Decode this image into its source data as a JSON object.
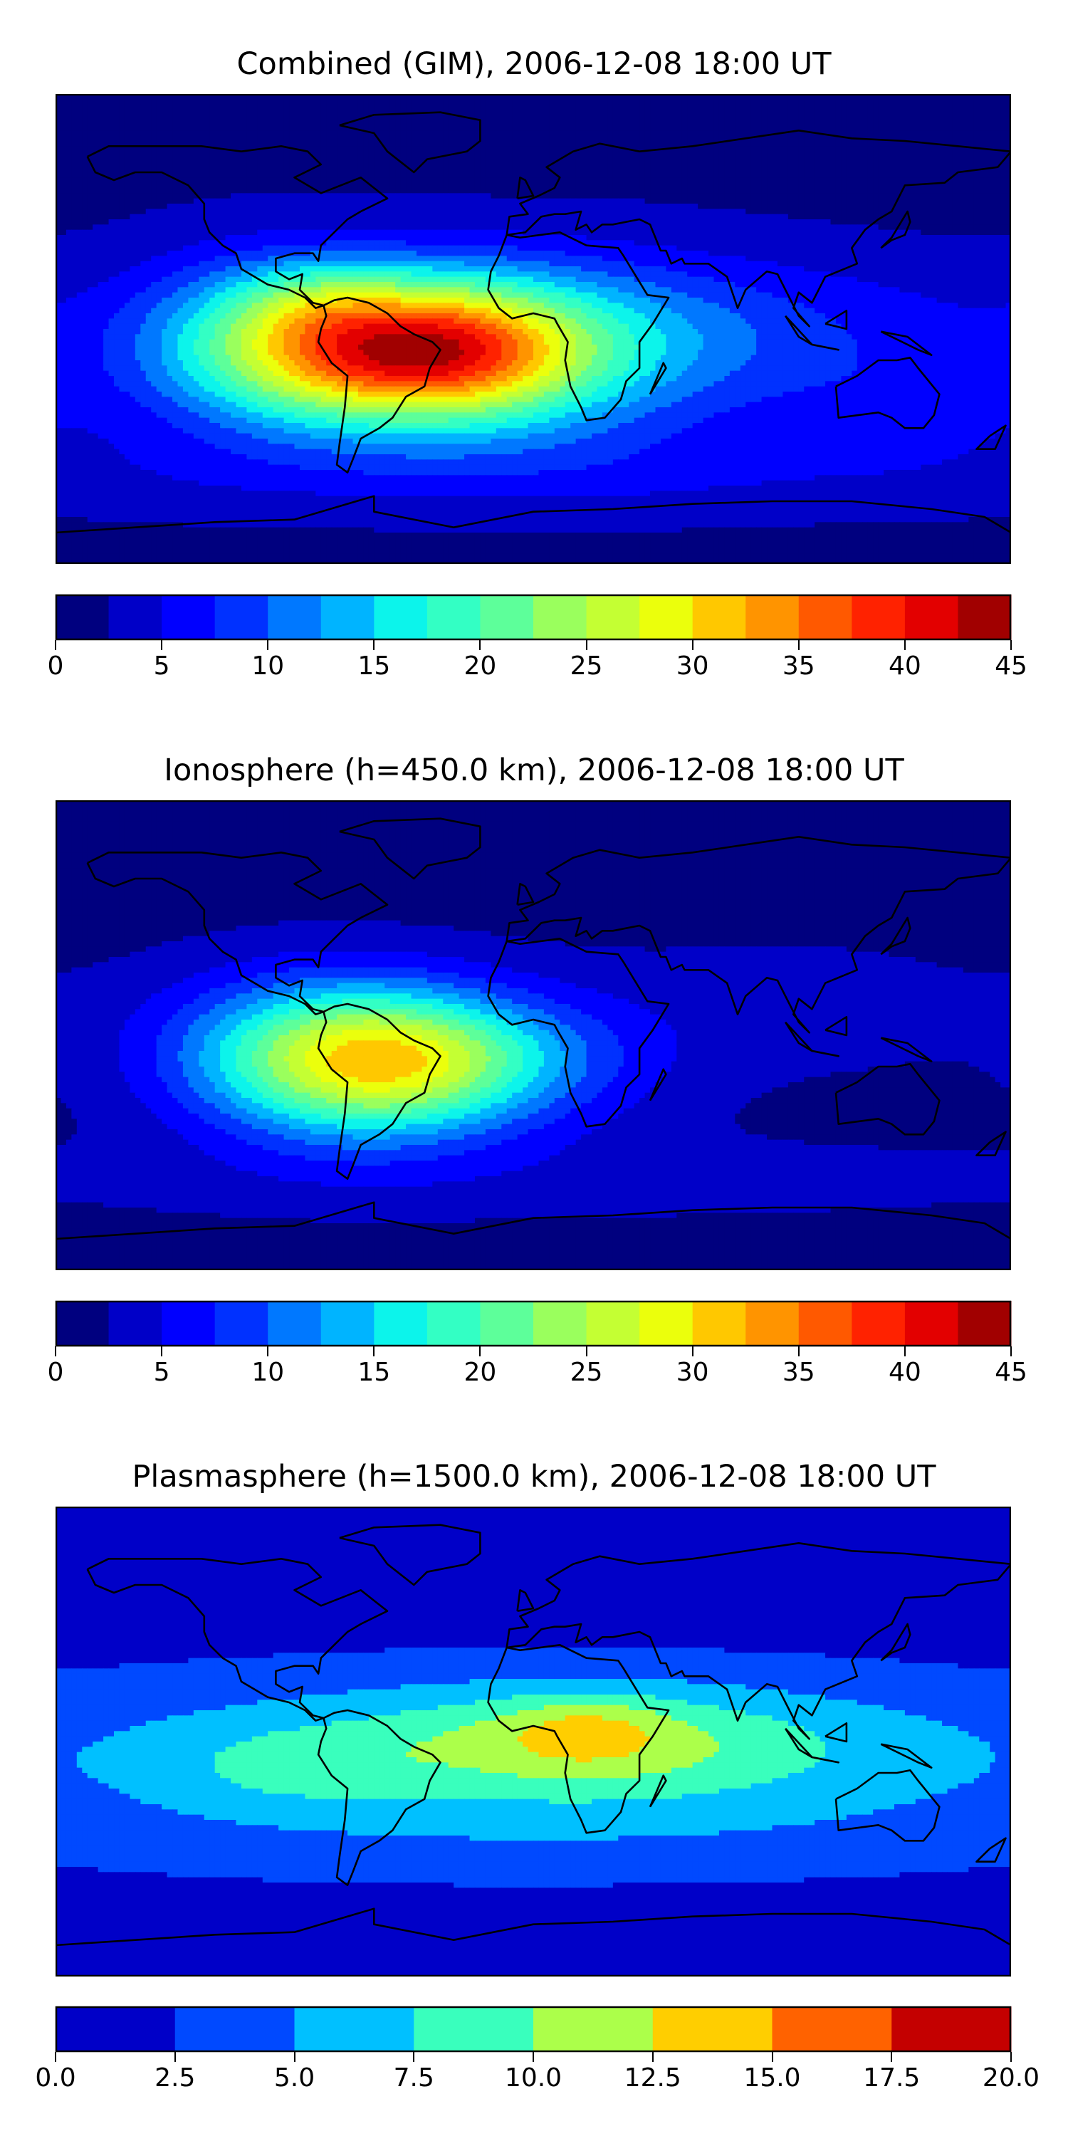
{
  "panels": [
    {
      "title": "Combined (GIM), 2006-12-08 18:00 UT",
      "field": {
        "background": 1.8,
        "blobs": [
          {
            "lon": -55,
            "lat": -8,
            "sx": 45,
            "sy": 20,
            "amp": 35
          },
          {
            "lon": -20,
            "lat": -10,
            "sx": 30,
            "sy": 18,
            "amp": 6
          },
          {
            "lon": -110,
            "lat": -5,
            "sx": 35,
            "sy": 25,
            "amp": 6
          },
          {
            "lon": -85,
            "lat": 12,
            "sx": 20,
            "sy": 10,
            "amp": 4
          },
          {
            "lon": 20,
            "lat": -10,
            "sx": 45,
            "sy": 25,
            "amp": 8
          },
          {
            "lon": 90,
            "lat": 0,
            "sx": 70,
            "sy": 20,
            "amp": 5
          },
          {
            "lon": 140,
            "lat": -30,
            "sx": 40,
            "sy": 15,
            "amp": 3
          },
          {
            "lon": 0,
            "lat": -55,
            "sx": 180,
            "sy": 12,
            "amp": 3
          }
        ]
      },
      "colorbar": {
        "colors": [
          "#00007f",
          "#0000c8",
          "#0000ff",
          "#0031ff",
          "#0078ff",
          "#00b4ff",
          "#0cf4eb",
          "#33ffc4",
          "#5dff9a",
          "#9aff5d",
          "#c4ff33",
          "#ebff0c",
          "#ffc800",
          "#ff9400",
          "#ff5900",
          "#ff2200",
          "#e30000",
          "#a10000"
        ],
        "ticks": [
          "0",
          "5",
          "10",
          "15",
          "20",
          "25",
          "30",
          "35",
          "40",
          "45"
        ],
        "range": [
          0,
          45
        ]
      }
    },
    {
      "title": "Ionosphere  (h=450.0 km), 2006-12-08 18:00 UT",
      "field": {
        "background": 1.5,
        "blobs": [
          {
            "lon": -60,
            "lat": -10,
            "sx": 40,
            "sy": 20,
            "amp": 26
          },
          {
            "lon": -100,
            "lat": -5,
            "sx": 40,
            "sy": 22,
            "amp": 5
          },
          {
            "lon": -20,
            "lat": -10,
            "sx": 30,
            "sy": 15,
            "amp": 4
          },
          {
            "lon": 20,
            "lat": -10,
            "sx": 35,
            "sy": 20,
            "amp": 3
          },
          {
            "lon": 100,
            "lat": 10,
            "sx": 60,
            "sy": 20,
            "amp": 2
          },
          {
            "lon": 0,
            "lat": -55,
            "sx": 180,
            "sy": 12,
            "amp": 2
          }
        ]
      },
      "colorbar": {
        "colors": [
          "#00007f",
          "#0000c8",
          "#0000ff",
          "#0031ff",
          "#0078ff",
          "#00b4ff",
          "#0cf4eb",
          "#33ffc4",
          "#5dff9a",
          "#9aff5d",
          "#c4ff33",
          "#ebff0c",
          "#ffc800",
          "#ff9400",
          "#ff5900",
          "#ff2200",
          "#e30000",
          "#a10000"
        ],
        "ticks": [
          "0",
          "5",
          "10",
          "15",
          "20",
          "25",
          "30",
          "35",
          "40",
          "45"
        ],
        "range": [
          0,
          45
        ]
      }
    },
    {
      "title": "Plasmasphere (h=1500.0 km), 2006-12-08 18:00 UT",
      "field": {
        "background": 0.8,
        "blobs": [
          {
            "lon": 0,
            "lat": -5,
            "sx": 190,
            "sy": 25,
            "amp": 6
          },
          {
            "lon": 20,
            "lat": 0,
            "sx": 60,
            "sy": 14,
            "amp": 5
          },
          {
            "lon": 20,
            "lat": 5,
            "sx": 20,
            "sy": 9,
            "amp": 3
          },
          {
            "lon": -90,
            "lat": -10,
            "sx": 30,
            "sy": 10,
            "amp": 2.5
          },
          {
            "lon": 0,
            "lat": -40,
            "sx": 180,
            "sy": 15,
            "amp": 1.5
          }
        ]
      },
      "colorbar": {
        "colors": [
          "#0000c8",
          "#0049ff",
          "#00c0ff",
          "#39ffbd",
          "#acff4a",
          "#ffce00",
          "#ff6200",
          "#c40000"
        ],
        "ticks": [
          "0.0",
          "2.5",
          "5.0",
          "7.5",
          "10.0",
          "12.5",
          "15.0",
          "17.5",
          "20.0"
        ],
        "range": [
          0,
          20
        ]
      }
    }
  ]
}
